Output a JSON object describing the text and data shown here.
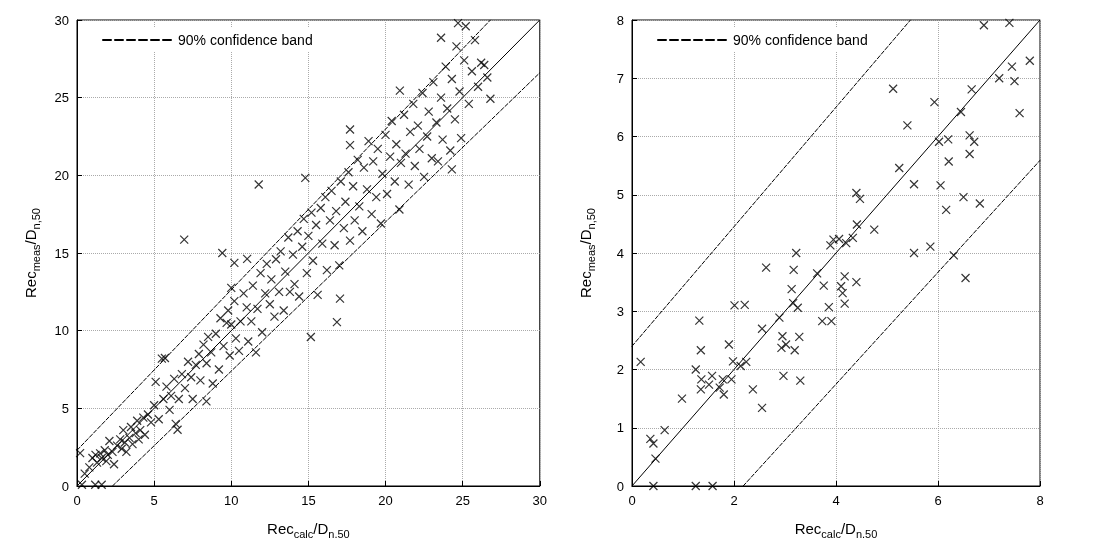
{
  "chart_data": [
    {
      "type": "scatter",
      "xlabel": "Rec$_{calc}$/D$_{n.50}$",
      "ylabel": "Rec$_{meas}$/D$_{n,50}$",
      "xlim": [
        0,
        30
      ],
      "ylim": [
        0,
        30
      ],
      "xticks": [
        0,
        5,
        10,
        15,
        20,
        25,
        30
      ],
      "yticks": [
        0,
        5,
        10,
        15,
        20,
        25,
        30
      ],
      "grid": true,
      "legend": "top left",
      "series": [
        {
          "type": "scatter",
          "color": "#000000",
          "marker": "cross",
          "x": [
            0.5,
            0.8,
            1.0,
            1.2,
            1.3,
            1.5,
            1.6,
            1.8,
            1.9,
            2.0,
            2.1,
            2.3,
            2.4,
            2.6,
            2.8,
            2.9,
            3.0,
            3.1,
            3.2,
            3.4,
            3.5,
            3.6,
            3.8,
            3.9,
            4.0,
            4.1,
            4.3,
            4.4,
            4.6,
            4.8,
            5.0,
            5.1,
            5.3,
            5.5,
            5.6,
            5.8,
            6.0,
            6.1,
            6.3,
            6.4,
            6.6,
            6.8,
            7.0,
            7.2,
            7.4,
            7.5,
            7.7,
            7.9,
            8.0,
            8.2,
            8.4,
            8.5,
            8.7,
            8.8,
            9.0,
            9.2,
            9.3,
            9.5,
            9.7,
            9.8,
            9.9,
            10.0,
            10.2,
            10.3,
            10.5,
            10.6,
            10.8,
            11.0,
            11.1,
            11.3,
            11.4,
            11.6,
            11.7,
            11.9,
            12.0,
            12.2,
            12.3,
            12.5,
            12.6,
            12.8,
            12.9,
            13.1,
            13.2,
            13.4,
            13.5,
            13.7,
            13.8,
            14.0,
            14.1,
            14.3,
            14.4,
            14.6,
            14.7,
            14.9,
            15.0,
            15.2,
            15.3,
            15.5,
            15.6,
            15.8,
            15.9,
            16.1,
            16.2,
            16.4,
            16.5,
            16.7,
            16.8,
            17.0,
            17.1,
            17.3,
            17.4,
            17.6,
            17.7,
            17.9,
            18.0,
            18.2,
            18.3,
            18.5,
            18.6,
            18.8,
            18.9,
            19.1,
            19.2,
            19.4,
            19.5,
            19.7,
            19.8,
            20.0,
            20.1,
            20.3,
            20.4,
            20.6,
            20.7,
            20.9,
            21.0,
            21.2,
            21.3,
            21.5,
            21.6,
            21.8,
            21.9,
            22.1,
            22.2,
            22.4,
            22.5,
            22.7,
            22.8,
            23.0,
            23.1,
            23.3,
            23.4,
            23.6,
            23.7,
            23.9,
            24.0,
            24.2,
            24.3,
            24.5,
            24.6,
            24.8,
            24.9,
            25.1,
            25.2,
            25.4,
            25.6,
            25.8,
            26.0,
            26.4,
            26.6,
            24.7,
            6.95,
            11.78,
            9.42,
            10.2,
            11.03,
            10.0,
            14.8,
            15.16,
            5.7,
            8.39,
            6.52,
            0.2,
            0.32,
            1.18,
            1.6,
            16.85,
            17.05,
            17.7,
            17.7,
            20.93,
            23.6,
            26.8,
            24.3,
            26.2
          ],
          "values": [
            0.8,
            1.2,
            1.8,
            2.0,
            1.5,
            2.1,
            1.8,
            2.3,
            1.6,
            2.0,
            2.9,
            2.2,
            1.4,
            2.6,
            3.0,
            2.4,
            3.6,
            2.8,
            2.2,
            3.1,
            3.8,
            2.7,
            3.4,
            4.2,
            3.0,
            3.6,
            4.4,
            3.3,
            4.6,
            4.1,
            5.2,
            6.7,
            4.3,
            8.2,
            5.6,
            6.4,
            4.9,
            5.8,
            6.9,
            4.0,
            5.6,
            7.2,
            6.3,
            8.0,
            7.0,
            5.6,
            7.8,
            8.5,
            6.8,
            9.1,
            7.9,
            9.6,
            8.6,
            6.6,
            9.8,
            7.5,
            10.8,
            9.0,
            10.5,
            11.3,
            8.4,
            10.4,
            11.9,
            9.5,
            8.7,
            10.6,
            12.4,
            11.5,
            9.3,
            10.6,
            12.9,
            8.6,
            11.4,
            13.7,
            9.9,
            12.4,
            14.3,
            11.7,
            13.3,
            10.9,
            14.6,
            12.5,
            15.1,
            11.3,
            13.8,
            16.0,
            12.5,
            14.9,
            13.0,
            16.4,
            12.2,
            15.4,
            17.2,
            13.7,
            16.1,
            17.6,
            14.5,
            16.8,
            12.3,
            17.9,
            15.6,
            18.6,
            13.9,
            17.1,
            19.0,
            15.5,
            17.7,
            14.2,
            19.6,
            16.6,
            18.3,
            20.2,
            15.8,
            19.3,
            17.1,
            21.0,
            18.0,
            16.4,
            20.5,
            19.1,
            22.2,
            17.5,
            20.9,
            18.6,
            21.7,
            16.9,
            20.1,
            22.6,
            18.8,
            21.2,
            23.5,
            19.6,
            22.0,
            17.8,
            20.8,
            23.9,
            21.4,
            19.4,
            22.8,
            24.6,
            20.6,
            23.2,
            21.7,
            25.3,
            19.9,
            22.5,
            24.1,
            21.1,
            26.0,
            23.4,
            20.9,
            25.0,
            22.3,
            27.0,
            24.3,
            21.6,
            26.2,
            23.6,
            28.3,
            25.4,
            22.4,
            27.4,
            29.6,
            24.6,
            26.7,
            28.7,
            25.7,
            27.1,
            26.3,
            29.8,
            15.86,
            19.41,
            15.0,
            14.36,
            14.62,
            12.75,
            19.84,
            9.59,
            8.24,
            5.45,
            3.62,
            2.12,
            0.08,
            0.08,
            0.08,
            10.55,
            12.06,
            22.95,
            21.94,
            25.45,
            28.86,
            24.93,
            20.38,
            27.25
          ]
        },
        {
          "type": "line",
          "color": "#000000",
          "marker": "none",
          "line_style": "solid",
          "x": [
            0,
            30
          ],
          "values": [
            0,
            30
          ]
        },
        {
          "type": "line",
          "name": "90% confidence band",
          "color": "#000000",
          "marker": "none",
          "line_style": "dashed",
          "x": [
            0,
            26.8
          ],
          "values": [
            2.3,
            30
          ]
        },
        {
          "type": "line",
          "color": "#000000",
          "marker": "none",
          "line_style": "dashed",
          "x": [
            2.3,
            30
          ],
          "values": [
            0,
            26.6
          ]
        }
      ]
    },
    {
      "type": "scatter",
      "xlabel": "Rec$_{calc}$/D$_{n.50}$",
      "ylabel": "Rec$_{meas}$/D$_{n,50}$",
      "xlim": [
        0,
        8
      ],
      "ylim": [
        0,
        8
      ],
      "xticks": [
        0,
        2,
        4,
        6,
        8
      ],
      "yticks": [
        0,
        1,
        2,
        3,
        4,
        5,
        6,
        7,
        8
      ],
      "grid": true,
      "legend": "top left",
      "series": [
        {
          "type": "scatter",
          "color": "#000000",
          "marker": "cross",
          "x": [
            0.17,
            0.36,
            0.42,
            0.46,
            0.64,
            0.42,
            0.98,
            1.25,
            1.32,
            1.35,
            1.36,
            1.35,
            1.51,
            1.57,
            1.72,
            1.8,
            1.78,
            1.9,
            1.95,
            1.98,
            2.01,
            2.21,
            2.13,
            2.24,
            2.37,
            2.55,
            2.55,
            2.63,
            2.89,
            2.93,
            2.95,
            3.02,
            2.97,
            3.13,
            3.17,
            3.16,
            3.25,
            3.22,
            3.28,
            3.19,
            3.3,
            1.25,
            1.58,
            5.12,
            5.4,
            5.24,
            5.53,
            4.4,
            4.47,
            4.41,
            4.75,
            4.33,
            4.2,
            4.06,
            3.95,
            3.89,
            5.53,
            5.85,
            6.31,
            6.05,
            6.16,
            6.21,
            6.2,
            6.02,
            5.93,
            6.45,
            6.66,
            6.62,
            6.71,
            6.62,
            6.5,
            6.82,
            6.54,
            6.9,
            4.17,
            3.76,
            4.1,
            4.13,
            4.4,
            4.17,
            3.86,
            3.73,
            3.91,
            3.63,
            7.4,
            7.2,
            7.45,
            7.5,
            7.6,
            7.8
          ],
          "values": [
            2.13,
            0.81,
            0.73,
            0.47,
            0.96,
            0,
            1.5,
            2.0,
            2.84,
            2.33,
            1.83,
            1.66,
            1.74,
            1.89,
            1.69,
            1.57,
            1.83,
            2.43,
            1.83,
            2.14,
            3.1,
            3.11,
            2.06,
            2.13,
            1.66,
            1.34,
            2.7,
            3.75,
            2.89,
            2.37,
            2.57,
            2.43,
            1.89,
            3.38,
            3.71,
            3.14,
            3.06,
            4.0,
            2.56,
            2.33,
            1.81,
            0,
            0,
            6.82,
            6.19,
            5.46,
            5.18,
            5.03,
            4.93,
            4.49,
            4.4,
            4.26,
            4.17,
            4.24,
            4.23,
            4.13,
            4.0,
            4.11,
            3.96,
            5.16,
            4.74,
            5.57,
            5.95,
            5.91,
            6.59,
            6.42,
            6.81,
            6.02,
            5.91,
            5.7,
            4.96,
            4.85,
            3.57,
            7.91,
            3.6,
            3.44,
            3.43,
            3.31,
            3.5,
            3.13,
            3.07,
            2.83,
            2.83,
            3.65,
            7.95,
            7.0,
            7.2,
            6.95,
            6.4,
            7.3
          ]
        },
        {
          "type": "line",
          "color": "#000000",
          "marker": "none",
          "line_style": "solid",
          "x": [
            0,
            8
          ],
          "values": [
            0,
            8
          ]
        },
        {
          "type": "line",
          "name": "90% confidence band",
          "color": "#000000",
          "marker": "none",
          "line_style": "dashed",
          "x": [
            0,
            5.46
          ],
          "values": [
            2.4,
            8
          ]
        },
        {
          "type": "line",
          "color": "#000000",
          "marker": "none",
          "line_style": "dashed",
          "x": [
            2.18,
            8
          ],
          "values": [
            0,
            5.59
          ]
        }
      ]
    }
  ]
}
